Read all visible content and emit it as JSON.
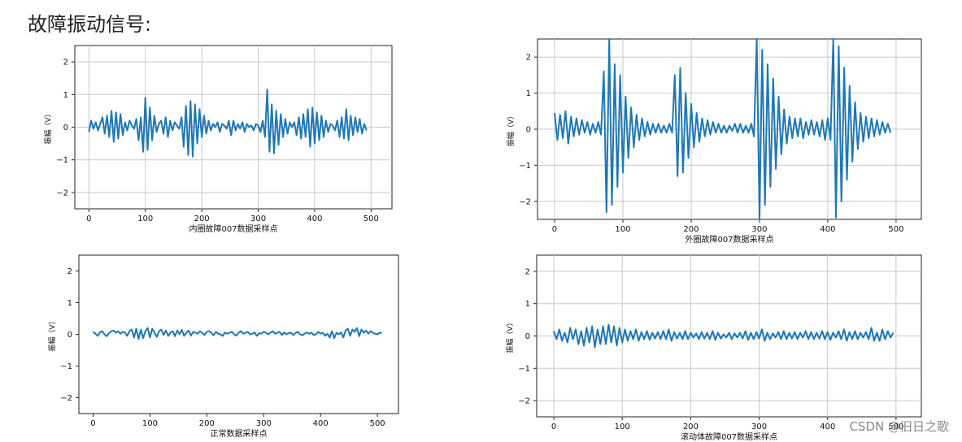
{
  "page": {
    "heading": "故障振动信号:",
    "watermark": "CSDN @旧日之歌"
  },
  "chart_data": [
    {
      "type": "line",
      "xlabel": "内圈故障007数据采样点",
      "ylabel": "振幅（V）",
      "xlim": [
        -25,
        537
      ],
      "ylim": [
        -2.5,
        2.5
      ],
      "xticks": [
        0,
        100,
        200,
        300,
        400,
        500
      ],
      "yticks": [
        2,
        1,
        0,
        -1,
        -2
      ],
      "grid": true,
      "color": "#1f77b4",
      "series": [
        {
          "x_start": 0,
          "x_step": 4,
          "values": [
            -0.15,
            0.2,
            -0.05,
            0.15,
            -0.1,
            0.1,
            0.3,
            -0.2,
            0.35,
            -0.3,
            0.5,
            -0.45,
            0.45,
            -0.35,
            0.4,
            -0.25,
            0.15,
            -0.1,
            0.2,
            0.05,
            -0.05,
            0.25,
            -0.4,
            0.3,
            -0.75,
            0.9,
            -0.7,
            0.6,
            -0.4,
            0.35,
            -0.15,
            0.1,
            0.2,
            -0.2,
            0.3,
            -0.3,
            0.2,
            -0.1,
            0.15,
            0.05,
            -0.05,
            0.3,
            -0.6,
            0.65,
            -0.85,
            0.8,
            -0.9,
            0.7,
            -0.5,
            0.55,
            -0.3,
            0.35,
            -0.2,
            0.2,
            -0.1,
            0.1,
            0.0,
            0.15,
            -0.15,
            0.1,
            0.05,
            -0.05,
            0.2,
            -0.25,
            0.2,
            -0.1,
            0.1,
            -0.05,
            0.15,
            -0.15,
            0.1,
            0.0,
            0.05,
            -0.1,
            0.1,
            0.05,
            -0.15,
            0.2,
            -0.3,
            1.15,
            -0.75,
            0.7,
            -0.8,
            0.5,
            -0.55,
            0.4,
            -0.3,
            0.25,
            -0.2,
            0.15,
            0.0,
            0.15,
            -0.25,
            0.3,
            -0.35,
            0.4,
            -0.3,
            0.55,
            -0.6,
            0.6,
            -0.5,
            0.45,
            -0.4,
            0.35,
            -0.3,
            0.2,
            -0.15,
            0.1,
            0.05,
            -0.1,
            0.2,
            -0.3,
            0.3,
            -0.35,
            0.55,
            -0.4,
            0.35,
            -0.25,
            0.3,
            -0.15,
            0.25,
            -0.2,
            0.1,
            -0.1
          ]
        }
      ]
    },
    {
      "type": "line",
      "xlabel": "外圈故障007数据采样点",
      "ylabel": "振幅（V）",
      "xlim": [
        -25,
        537
      ],
      "ylim": [
        -2.5,
        2.5
      ],
      "xticks": [
        0,
        100,
        200,
        300,
        400,
        500
      ],
      "yticks": [
        2,
        1,
        0,
        -1,
        -2
      ],
      "grid": true,
      "color": "#1f77b4",
      "series": [
        {
          "x_start": 0,
          "x_step": 4,
          "values": [
            0.45,
            -0.3,
            0.4,
            -0.25,
            0.5,
            -0.4,
            0.35,
            -0.2,
            0.3,
            -0.15,
            0.25,
            -0.1,
            0.2,
            -0.15,
            0.15,
            -0.1,
            0.2,
            -0.15,
            1.6,
            -2.3,
            2.5,
            -2.1,
            1.8,
            -1.6,
            1.5,
            -1.2,
            0.9,
            -0.8,
            0.6,
            -0.5,
            0.4,
            -0.3,
            0.3,
            -0.2,
            0.2,
            -0.15,
            0.15,
            -0.1,
            0.15,
            -0.1,
            0.1,
            -0.1,
            0.15,
            -0.1,
            1.5,
            -1.3,
            1.7,
            -1.2,
            1.0,
            -0.8,
            0.7,
            -0.5,
            0.45,
            -0.35,
            0.3,
            -0.2,
            0.25,
            -0.15,
            0.2,
            -0.1,
            0.15,
            -0.1,
            0.1,
            -0.1,
            0.1,
            -0.05,
            0.15,
            -0.1,
            0.15,
            -0.1,
            0.1,
            -0.1,
            0.15,
            -0.2,
            2.5,
            -2.5,
            2.2,
            -2.1,
            1.8,
            -1.6,
            1.4,
            -1.1,
            0.9,
            -0.7,
            0.55,
            -0.4,
            0.35,
            -0.25,
            0.3,
            -0.2,
            0.3,
            -0.25,
            0.2,
            -0.15,
            0.25,
            -0.15,
            0.2,
            -0.2,
            0.25,
            -0.3,
            0.3,
            -0.3,
            2.5,
            -2.45,
            2.3,
            -2.0,
            1.7,
            -1.4,
            1.2,
            -0.9,
            0.75,
            -0.55,
            0.45,
            -0.35,
            0.35,
            -0.25,
            0.3,
            -0.2,
            0.25,
            -0.15,
            0.2,
            -0.1,
            0.15,
            -0.1
          ]
        }
      ]
    },
    {
      "type": "line",
      "xlabel": "正常数据采样点",
      "ylabel": "振幅（V）",
      "xlim": [
        -25,
        537
      ],
      "ylim": [
        -2.5,
        2.5
      ],
      "xticks": [
        0,
        100,
        200,
        300,
        400,
        500
      ],
      "yticks": [
        2,
        1,
        0,
        -1,
        -2
      ],
      "grid": false,
      "color": "#1f77b4",
      "series": [
        {
          "x_start": 0,
          "x_step": 4,
          "values": [
            0.08,
            0.02,
            -0.05,
            0.06,
            0.1,
            0.0,
            -0.06,
            0.04,
            0.1,
            0.12,
            0.05,
            0.1,
            0.02,
            0.08,
            0.06,
            -0.05,
            0.1,
            0.15,
            -0.1,
            0.18,
            -0.15,
            0.15,
            -0.12,
            0.1,
            0.2,
            -0.1,
            0.18,
            0.05,
            -0.08,
            0.1,
            0.15,
            -0.02,
            0.12,
            -0.05,
            0.06,
            0.1,
            -0.06,
            0.12,
            0.0,
            0.14,
            -0.05,
            0.05,
            0.12,
            -0.04,
            0.08,
            0.05,
            0.02,
            0.1,
            0.04,
            -0.02,
            0.08,
            0.1,
            0.05,
            -0.03,
            0.08,
            0.02,
            0.0,
            -0.05,
            0.06,
            0.02,
            0.05,
            0.08,
            0.0,
            -0.04,
            0.06,
            0.1,
            0.02,
            0.05,
            0.08,
            0.0,
            0.02,
            0.06,
            -0.05,
            0.04,
            0.02,
            0.08,
            0.05,
            0.0,
            0.06,
            0.1,
            0.02,
            0.05,
            0.08,
            -0.02,
            0.06,
            0.0,
            0.04,
            0.05,
            -0.02,
            0.04,
            0.08,
            0.0,
            -0.03,
            0.02,
            0.06,
            0.02,
            0.05,
            -0.02,
            0.0,
            0.08,
            0.02,
            0.05,
            -0.05,
            0.02,
            -0.1,
            0.1,
            -0.12,
            0.05,
            0.0,
            0.06,
            -0.1,
            0.12,
            0.18,
            -0.05,
            0.15,
            0.08,
            0.2,
            -0.06,
            0.15,
            0.05,
            0.12,
            0.02,
            0.1,
            0.05,
            0.02,
            0.0,
            0.05,
            0.04
          ]
        }
      ]
    },
    {
      "type": "line",
      "xlabel": "滚动体故障007数据采样点",
      "ylabel": "振幅（V）",
      "xlim": [
        -25,
        537
      ],
      "ylim": [
        -2.5,
        2.5
      ],
      "xticks": [
        0,
        100,
        200,
        300,
        400,
        500
      ],
      "yticks": [
        2,
        1,
        0,
        -1,
        -2
      ],
      "grid": true,
      "color": "#1f77b4",
      "series": [
        {
          "x_start": 0,
          "x_step": 4,
          "values": [
            0.15,
            -0.1,
            0.2,
            -0.15,
            0.1,
            -0.2,
            0.25,
            -0.1,
            0.2,
            -0.25,
            0.15,
            -0.3,
            0.25,
            -0.2,
            0.3,
            -0.35,
            0.2,
            -0.25,
            0.3,
            -0.25,
            0.35,
            -0.2,
            0.3,
            -0.3,
            0.25,
            -0.2,
            0.2,
            -0.15,
            0.15,
            -0.1,
            0.2,
            -0.15,
            0.12,
            -0.1,
            0.15,
            -0.12,
            0.1,
            -0.08,
            0.12,
            -0.1,
            0.15,
            -0.1,
            0.2,
            -0.15,
            0.12,
            -0.08,
            0.1,
            -0.1,
            0.15,
            -0.1,
            0.1,
            -0.05,
            0.08,
            -0.1,
            0.12,
            -0.08,
            0.1,
            -0.1,
            0.15,
            -0.12,
            0.1,
            -0.08,
            0.05,
            -0.05,
            0.1,
            -0.1,
            0.08,
            -0.05,
            0.1,
            -0.08,
            0.15,
            -0.12,
            0.1,
            -0.1,
            0.12,
            -0.08,
            0.2,
            -0.15,
            0.1,
            -0.1,
            0.08,
            -0.05,
            0.12,
            -0.1,
            0.15,
            -0.1,
            0.1,
            -0.08,
            0.12,
            -0.1,
            0.1,
            -0.05,
            0.15,
            -0.1,
            0.12,
            -0.1,
            0.1,
            -0.08,
            0.15,
            -0.1,
            0.12,
            -0.12,
            0.1,
            -0.05,
            0.15,
            -0.1,
            0.2,
            -0.15,
            0.12,
            -0.1,
            0.15,
            -0.1,
            0.1,
            -0.05,
            0.12,
            -0.1,
            0.25,
            -0.15,
            0.1,
            -0.15,
            0.2,
            -0.1,
            0.15,
            -0.05,
            0.1
          ]
        }
      ]
    }
  ]
}
